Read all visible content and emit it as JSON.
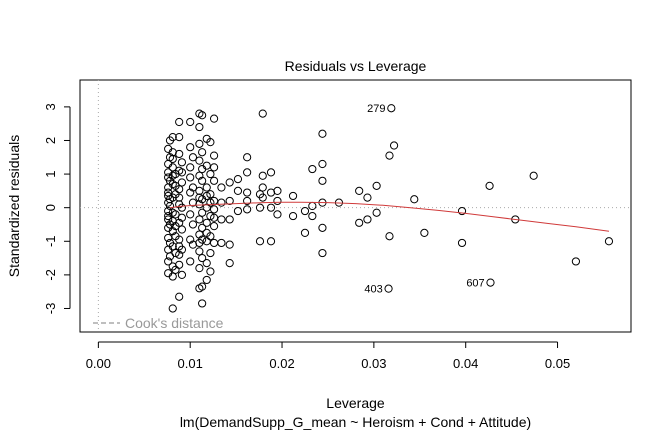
{
  "chart_data": {
    "type": "scatter",
    "title": "Residuals vs Leverage",
    "xlabel": "Leverage",
    "ylabel": "Standardized residuals",
    "subtitle": "lm(DemandSupp_G_mean ~ Heroism + Cond + Attitude)",
    "xlim": [
      -0.002,
      0.058
    ],
    "ylim": [
      -3.7,
      3.8
    ],
    "xticks": [
      "0.00",
      "0.01",
      "0.02",
      "0.03",
      "0.04",
      "0.05"
    ],
    "xtick_values": [
      0.0,
      0.01,
      0.02,
      0.03,
      0.04,
      0.05
    ],
    "yticks": [
      "-3",
      "-2",
      "-1",
      "0",
      "1",
      "2",
      "3"
    ],
    "ytick_values": [
      -3,
      -2,
      -1,
      0,
      1,
      2,
      3
    ],
    "legend": {
      "label": "Cook's distance",
      "placement": "bottom-left"
    },
    "grid": false,
    "reference_lines": {
      "horizontal": 0,
      "vertical": 0,
      "style": "dotted"
    },
    "smoother": {
      "color": "#d03a3a",
      "x": [
        0.0078,
        0.009,
        0.0105,
        0.012,
        0.014,
        0.016,
        0.018,
        0.02,
        0.022,
        0.025,
        0.028,
        0.031,
        0.034,
        0.037,
        0.04,
        0.043,
        0.046,
        0.049,
        0.052,
        0.0556
      ],
      "y": [
        0.0,
        0.04,
        0.07,
        0.09,
        0.11,
        0.13,
        0.15,
        0.16,
        0.16,
        0.15,
        0.12,
        0.07,
        0.0,
        -0.08,
        -0.17,
        -0.27,
        -0.37,
        -0.47,
        -0.57,
        -0.7
      ]
    },
    "labeled_points": [
      {
        "label": "279",
        "x": 0.0319,
        "y": 2.96
      },
      {
        "label": "403",
        "x": 0.0316,
        "y": -2.41
      },
      {
        "label": "607",
        "x": 0.0427,
        "y": -2.23
      }
    ],
    "points": [
      [
        0.0076,
        1.75
      ],
      [
        0.0076,
        1.3
      ],
      [
        0.0076,
        0.9
      ],
      [
        0.0076,
        0.6
      ],
      [
        0.0076,
        0.35
      ],
      [
        0.0076,
        0.15
      ],
      [
        0.0076,
        -0.1
      ],
      [
        0.0076,
        -0.35
      ],
      [
        0.0076,
        -0.6
      ],
      [
        0.0076,
        -0.9
      ],
      [
        0.0076,
        -1.25
      ],
      [
        0.0076,
        -1.6
      ],
      [
        0.0076,
        -1.95
      ],
      [
        0.0076,
        1.05
      ],
      [
        0.0076,
        -0.25
      ],
      [
        0.0076,
        0.45
      ],
      [
        0.0078,
        1.5
      ],
      [
        0.0078,
        0.8
      ],
      [
        0.0078,
        0.05
      ],
      [
        0.0078,
        -0.5
      ],
      [
        0.0078,
        -1.05
      ],
      [
        0.0078,
        -1.45
      ],
      [
        0.0078,
        2.0
      ],
      [
        0.0078,
        0.25
      ],
      [
        0.0081,
        2.1
      ],
      [
        0.0081,
        1.65
      ],
      [
        0.0081,
        1.2
      ],
      [
        0.0081,
        0.7
      ],
      [
        0.0081,
        0.3
      ],
      [
        0.0081,
        -0.15
      ],
      [
        0.0081,
        -0.7
      ],
      [
        0.0081,
        -1.15
      ],
      [
        0.0081,
        -1.75
      ],
      [
        0.0081,
        -2.05
      ],
      [
        0.0081,
        -3.0
      ],
      [
        0.0081,
        0.95
      ],
      [
        0.0081,
        -0.4
      ],
      [
        0.0081,
        1.45
      ],
      [
        0.0084,
        1.0
      ],
      [
        0.0084,
        0.4
      ],
      [
        0.0084,
        -0.2
      ],
      [
        0.0084,
        -0.85
      ],
      [
        0.0084,
        -1.35
      ],
      [
        0.0084,
        -1.85
      ],
      [
        0.0084,
        0.65
      ],
      [
        0.0084,
        -0.55
      ],
      [
        0.0088,
        2.55
      ],
      [
        0.0088,
        2.1
      ],
      [
        0.0088,
        1.6
      ],
      [
        0.0088,
        1.1
      ],
      [
        0.0088,
        0.55
      ],
      [
        0.0088,
        0.1
      ],
      [
        0.0088,
        -0.45
      ],
      [
        0.0088,
        -0.95
      ],
      [
        0.0088,
        -1.4
      ],
      [
        0.0088,
        -1.7
      ],
      [
        0.0088,
        -2.65
      ],
      [
        0.0088,
        0.3
      ],
      [
        0.0088,
        -1.15
      ],
      [
        0.0091,
        1.35
      ],
      [
        0.0091,
        0.75
      ],
      [
        0.0091,
        0.0
      ],
      [
        0.0091,
        -0.65
      ],
      [
        0.0091,
        -1.25
      ],
      [
        0.0091,
        -2.0
      ],
      [
        0.0091,
        1.05
      ],
      [
        0.0091,
        -0.3
      ],
      [
        0.01,
        2.55
      ],
      [
        0.01,
        1.8
      ],
      [
        0.01,
        1.2
      ],
      [
        0.01,
        0.45
      ],
      [
        0.01,
        -0.2
      ],
      [
        0.01,
        -0.95
      ],
      [
        0.01,
        -1.6
      ],
      [
        0.01,
        0.9
      ],
      [
        0.0103,
        1.5
      ],
      [
        0.0103,
        0.15
      ],
      [
        0.0103,
        -0.5
      ],
      [
        0.0103,
        -1.1
      ],
      [
        0.0103,
        0.6
      ],
      [
        0.011,
        2.8
      ],
      [
        0.011,
        2.4
      ],
      [
        0.011,
        1.9
      ],
      [
        0.011,
        1.4
      ],
      [
        0.011,
        0.95
      ],
      [
        0.011,
        0.5
      ],
      [
        0.011,
        0.1
      ],
      [
        0.011,
        -0.35
      ],
      [
        0.011,
        -0.8
      ],
      [
        0.011,
        -1.3
      ],
      [
        0.011,
        -1.8
      ],
      [
        0.011,
        -2.4
      ],
      [
        0.011,
        0.3
      ],
      [
        0.011,
        -1.05
      ],
      [
        0.0113,
        2.75
      ],
      [
        0.0113,
        1.65
      ],
      [
        0.0113,
        0.8
      ],
      [
        0.0113,
        0.25
      ],
      [
        0.0113,
        -0.15
      ],
      [
        0.0113,
        -0.6
      ],
      [
        0.0113,
        -1.5
      ],
      [
        0.0113,
        -2.35
      ],
      [
        0.0113,
        -2.85
      ],
      [
        0.0113,
        1.15
      ],
      [
        0.0113,
        -0.95
      ],
      [
        0.0118,
        2.05
      ],
      [
        0.0118,
        1.25
      ],
      [
        0.0118,
        0.6
      ],
      [
        0.0118,
        0.0
      ],
      [
        0.0118,
        -0.45
      ],
      [
        0.0118,
        -1.0
      ],
      [
        0.0118,
        -1.65
      ],
      [
        0.0118,
        -2.15
      ],
      [
        0.0118,
        0.35
      ],
      [
        0.0118,
        -0.75
      ],
      [
        0.0122,
        1.95
      ],
      [
        0.0122,
        1.0
      ],
      [
        0.0122,
        0.4
      ],
      [
        0.0122,
        -0.25
      ],
      [
        0.0122,
        -0.85
      ],
      [
        0.0122,
        -1.35
      ],
      [
        0.0122,
        -1.9
      ],
      [
        0.0122,
        0.15
      ],
      [
        0.0126,
        2.65
      ],
      [
        0.0126,
        1.55
      ],
      [
        0.0126,
        0.8
      ],
      [
        0.0126,
        0.2
      ],
      [
        0.0126,
        -0.05
      ],
      [
        0.0126,
        -0.55
      ],
      [
        0.0126,
        -1.05
      ],
      [
        0.0126,
        1.2
      ],
      [
        0.0126,
        -0.3
      ],
      [
        0.0134,
        0.6
      ],
      [
        0.0134,
        0.15
      ],
      [
        0.0134,
        -0.35
      ],
      [
        0.0134,
        -1.05
      ],
      [
        0.0143,
        0.75
      ],
      [
        0.0143,
        0.2
      ],
      [
        0.0143,
        -0.35
      ],
      [
        0.0143,
        -1.1
      ],
      [
        0.0143,
        -1.65
      ],
      [
        0.0152,
        0.85
      ],
      [
        0.0152,
        0.5
      ],
      [
        0.0152,
        -0.1
      ],
      [
        0.0162,
        1.5
      ],
      [
        0.0162,
        1.05
      ],
      [
        0.0162,
        0.45
      ],
      [
        0.0162,
        0.2
      ],
      [
        0.0162,
        -0.05
      ],
      [
        0.0176,
        0.4
      ],
      [
        0.0176,
        0.0
      ],
      [
        0.0176,
        -1.0
      ],
      [
        0.0179,
        2.8
      ],
      [
        0.0179,
        0.95
      ],
      [
        0.0179,
        0.6
      ],
      [
        0.0179,
        0.3
      ],
      [
        0.0188,
        1.05
      ],
      [
        0.0188,
        0.45
      ],
      [
        0.0188,
        0.0
      ],
      [
        0.0188,
        -1.0
      ],
      [
        0.0195,
        0.5
      ],
      [
        0.0195,
        0.2
      ],
      [
        0.0195,
        -0.2
      ],
      [
        0.0212,
        0.35
      ],
      [
        0.0212,
        -0.25
      ],
      [
        0.0225,
        -0.1
      ],
      [
        0.0225,
        -0.75
      ],
      [
        0.0233,
        1.15
      ],
      [
        0.0233,
        0.05
      ],
      [
        0.0233,
        -0.25
      ],
      [
        0.0244,
        2.2
      ],
      [
        0.0244,
        1.3
      ],
      [
        0.0244,
        0.8
      ],
      [
        0.0244,
        0.15
      ],
      [
        0.0244,
        -0.6
      ],
      [
        0.0244,
        -1.35
      ],
      [
        0.0262,
        0.15
      ],
      [
        0.0284,
        0.5
      ],
      [
        0.0284,
        -0.45
      ],
      [
        0.0293,
        -0.35
      ],
      [
        0.0293,
        0.3
      ],
      [
        0.0303,
        0.65
      ],
      [
        0.0303,
        -0.15
      ],
      [
        0.0317,
        1.55
      ],
      [
        0.0317,
        -0.85
      ],
      [
        0.0322,
        1.85
      ],
      [
        0.0344,
        0.25
      ],
      [
        0.0355,
        -0.75
      ],
      [
        0.0396,
        -0.1
      ],
      [
        0.0396,
        -1.05
      ],
      [
        0.0426,
        0.65
      ],
      [
        0.0454,
        -0.35
      ],
      [
        0.0474,
        0.95
      ],
      [
        0.052,
        -1.6
      ],
      [
        0.0556,
        -1.0
      ],
      [
        0.0319,
        2.96
      ],
      [
        0.0316,
        -2.41
      ],
      [
        0.0427,
        -2.23
      ]
    ]
  }
}
